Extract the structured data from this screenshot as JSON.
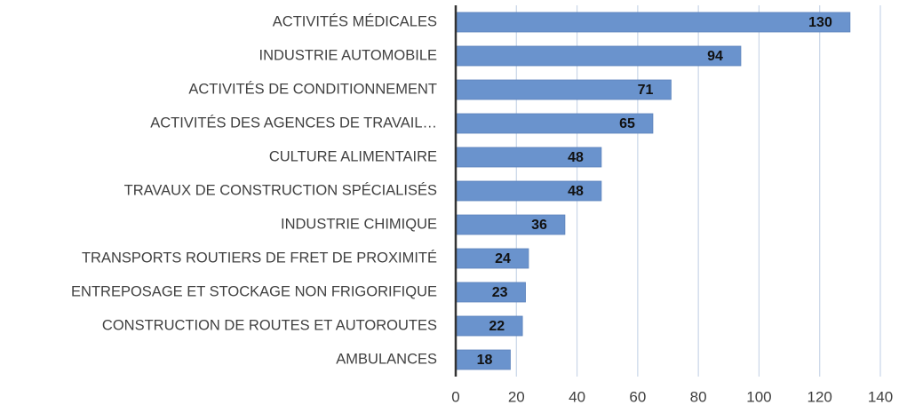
{
  "chart_data": {
    "type": "bar",
    "orientation": "horizontal",
    "categories": [
      "ACTIVITÉS MÉDICALES",
      "INDUSTRIE AUTOMOBILE",
      "ACTIVITÉS DE CONDITIONNEMENT",
      "ACTIVITÉS DES AGENCES DE TRAVAIL…",
      "CULTURE ALIMENTAIRE",
      "TRAVAUX DE CONSTRUCTION SPÉCIALISÉS",
      "INDUSTRIE CHIMIQUE",
      "TRANSPORTS ROUTIERS DE FRET DE PROXIMITÉ",
      "ENTREPOSAGE ET STOCKAGE NON FRIGORIFIQUE",
      "CONSTRUCTION DE ROUTES ET AUTOROUTES",
      "AMBULANCES"
    ],
    "values": [
      130,
      94,
      71,
      65,
      48,
      48,
      36,
      24,
      23,
      22,
      18
    ],
    "color": "#6a93cd",
    "xlim": [
      0,
      140
    ],
    "xticks": [
      0,
      20,
      40,
      60,
      80,
      100,
      120,
      140
    ],
    "grid": true
  }
}
